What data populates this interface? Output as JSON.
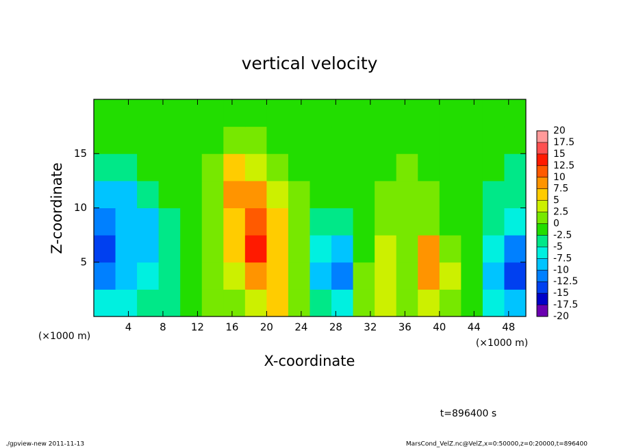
{
  "chart_data": {
    "type": "heatmap",
    "title": "vertical velocity",
    "x_label": "X-coordinate",
    "y_label": "Z-coordinate",
    "x_unit": "(×1000 m)",
    "annotation": "t=896400 s",
    "footer_left": "./gpview-new  2011-11-13",
    "footer_right": "MarsCond_VelZ.nc@VelZ,x=0:50000,z=0:20000,t=896400",
    "xlim": [
      0,
      50
    ],
    "ylim": [
      0,
      20
    ],
    "xticks": [
      4,
      8,
      12,
      16,
      20,
      24,
      28,
      32,
      36,
      40,
      44,
      48
    ],
    "yticks": [
      5,
      10,
      15
    ],
    "xbins": [
      0,
      2.5,
      5,
      7.5,
      10,
      12.5,
      15,
      17.5,
      20,
      22.5,
      25,
      27.5,
      30,
      32.5,
      35,
      37.5,
      40,
      42.5,
      45,
      47.5,
      50
    ],
    "ybins": [
      0,
      2.5,
      5,
      7.5,
      10,
      12.5,
      15,
      17.5,
      20
    ],
    "values": [
      [
        -5,
        -5,
        -2.5,
        -2.5,
        0,
        2.5,
        2.5,
        5,
        7.5,
        2.5,
        -2.5,
        -5,
        2.5,
        5,
        2.5,
        5,
        2.5,
        0,
        -5,
        -7.5
      ],
      [
        -10,
        -7.5,
        -5,
        -2.5,
        0,
        2.5,
        5,
        10,
        7.5,
        2.5,
        -7.5,
        -10,
        2.5,
        5,
        2.5,
        10,
        5,
        0,
        -7.5,
        -12.5
      ],
      [
        -12.5,
        -7.5,
        -7.5,
        -2.5,
        0,
        2.5,
        7.5,
        15,
        7.5,
        2.5,
        -5,
        -7.5,
        0,
        5,
        2.5,
        10,
        2.5,
        0,
        -5,
        -10
      ],
      [
        -10,
        -7.5,
        -7.5,
        -2.5,
        0,
        2.5,
        7.5,
        12.5,
        7.5,
        2.5,
        -2.5,
        -2.5,
        0,
        2.5,
        2.5,
        2.5,
        0,
        0,
        -2.5,
        -5
      ],
      [
        -7.5,
        -7.5,
        -2.5,
        0,
        0,
        2.5,
        10,
        10,
        5,
        2.5,
        0,
        0,
        0,
        2.5,
        2.5,
        2.5,
        0,
        0,
        -2.5,
        -2.5
      ],
      [
        -2.5,
        -2.5,
        0,
        0,
        0,
        2.5,
        7.5,
        5,
        2.5,
        0,
        0,
        0,
        0,
        0,
        2.5,
        0,
        0,
        0,
        0,
        -2.5
      ],
      [
        0,
        0,
        0,
        0,
        0,
        0,
        2.5,
        2.5,
        0,
        0,
        0,
        0,
        0,
        0,
        0,
        0,
        0,
        0,
        0,
        0
      ],
      [
        0,
        0,
        0,
        0,
        0,
        0,
        0,
        0,
        0,
        0,
        0,
        0,
        0,
        0,
        0,
        0,
        0,
        0,
        0,
        0
      ]
    ],
    "colorbar": {
      "ticks": [
        20,
        17.5,
        15,
        12.5,
        10,
        7.5,
        5,
        2.5,
        0,
        -2.5,
        -5,
        -7.5,
        -10,
        -12.5,
        -15,
        -17.5,
        -20
      ],
      "colors": [
        "#ff9a9a",
        "#ff5050",
        "#ff1a00",
        "#ff5a00",
        "#ff9400",
        "#ffcc00",
        "#ccf000",
        "#77e800",
        "#22dd00",
        "#00e888",
        "#00f0e0",
        "#00c4ff",
        "#0080ff",
        "#0040f0",
        "#0000c8",
        "#6a00b0"
      ]
    }
  }
}
